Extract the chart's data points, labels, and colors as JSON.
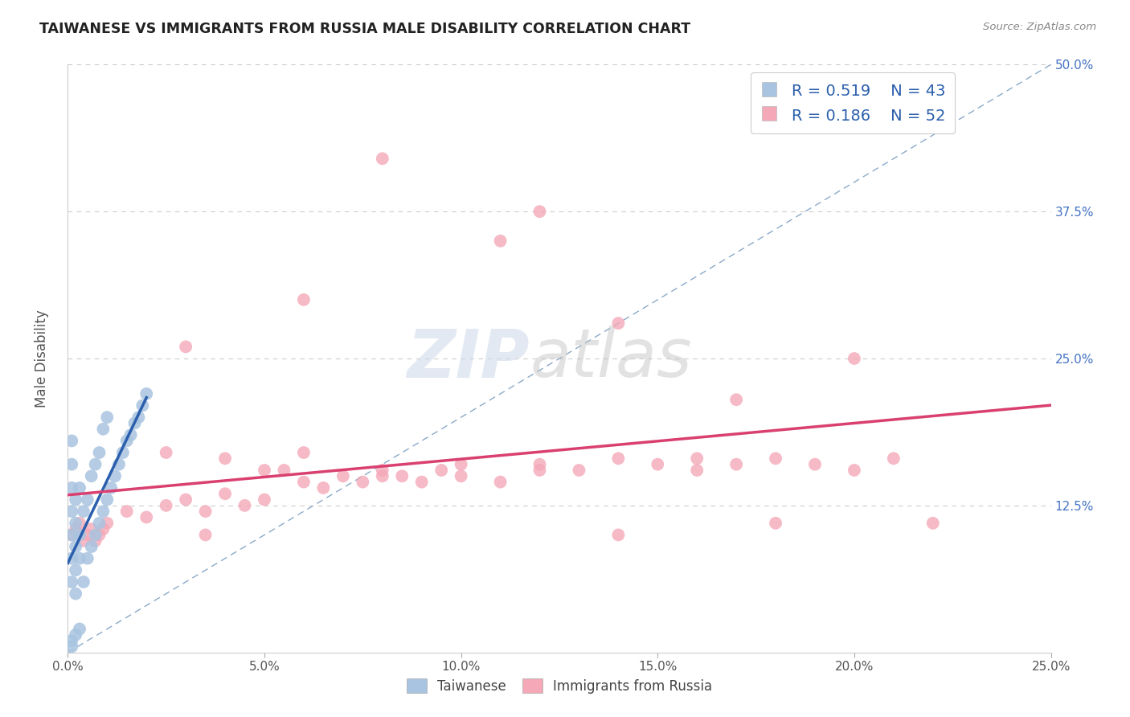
{
  "title": "TAIWANESE VS IMMIGRANTS FROM RUSSIA MALE DISABILITY CORRELATION CHART",
  "source": "Source: ZipAtlas.com",
  "ylabel": "Male Disability",
  "xlim": [
    0.0,
    0.25
  ],
  "ylim": [
    0.0,
    0.5
  ],
  "xticks": [
    0.0,
    0.05,
    0.1,
    0.15,
    0.2,
    0.25
  ],
  "yticks": [
    0.0,
    0.125,
    0.25,
    0.375,
    0.5
  ],
  "xticklabels": [
    "0.0%",
    "5.0%",
    "10.0%",
    "15.0%",
    "20.0%",
    "25.0%"
  ],
  "yticklabels_right": [
    "",
    "12.5%",
    "25.0%",
    "37.5%",
    "50.0%"
  ],
  "legend_labels": [
    "Taiwanese",
    "Immigrants from Russia"
  ],
  "r_taiwanese": 0.519,
  "n_taiwanese": 43,
  "r_russia": 0.186,
  "n_russia": 52,
  "color_taiwanese": "#a8c4e0",
  "color_russia": "#f4a8b8",
  "color_line_taiwanese": "#2b5fad",
  "color_line_russia": "#d94070",
  "color_diagonal": "#8aaac8",
  "tw_x": [
    0.001,
    0.001,
    0.001,
    0.001,
    0.001,
    0.001,
    0.001,
    0.002,
    0.002,
    0.002,
    0.002,
    0.002,
    0.003,
    0.003,
    0.003,
    0.004,
    0.004,
    0.005,
    0.005,
    0.006,
    0.006,
    0.007,
    0.007,
    0.008,
    0.008,
    0.009,
    0.009,
    0.01,
    0.01,
    0.011,
    0.012,
    0.013,
    0.014,
    0.015,
    0.016,
    0.017,
    0.018,
    0.019,
    0.02,
    0.001,
    0.001,
    0.002,
    0.003
  ],
  "tw_y": [
    0.06,
    0.08,
    0.1,
    0.12,
    0.14,
    0.16,
    0.18,
    0.05,
    0.07,
    0.09,
    0.11,
    0.13,
    0.08,
    0.1,
    0.14,
    0.06,
    0.12,
    0.08,
    0.13,
    0.09,
    0.15,
    0.1,
    0.16,
    0.11,
    0.17,
    0.12,
    0.19,
    0.13,
    0.2,
    0.14,
    0.15,
    0.16,
    0.17,
    0.18,
    0.185,
    0.195,
    0.2,
    0.21,
    0.22,
    0.005,
    0.01,
    0.015,
    0.02
  ],
  "ru_x": [
    0.001,
    0.002,
    0.003,
    0.004,
    0.005,
    0.006,
    0.007,
    0.008,
    0.009,
    0.01,
    0.015,
    0.02,
    0.025,
    0.03,
    0.035,
    0.04,
    0.045,
    0.05,
    0.055,
    0.06,
    0.065,
    0.07,
    0.075,
    0.08,
    0.085,
    0.09,
    0.095,
    0.1,
    0.11,
    0.12,
    0.13,
    0.14,
    0.15,
    0.16,
    0.17,
    0.18,
    0.19,
    0.2,
    0.21,
    0.22,
    0.025,
    0.03,
    0.035,
    0.04,
    0.05,
    0.06,
    0.08,
    0.1,
    0.12,
    0.14,
    0.16,
    0.18
  ],
  "ru_y": [
    0.1,
    0.105,
    0.11,
    0.095,
    0.1,
    0.105,
    0.095,
    0.1,
    0.105,
    0.11,
    0.12,
    0.115,
    0.125,
    0.13,
    0.12,
    0.135,
    0.125,
    0.13,
    0.155,
    0.145,
    0.14,
    0.15,
    0.145,
    0.155,
    0.15,
    0.145,
    0.155,
    0.15,
    0.145,
    0.16,
    0.155,
    0.165,
    0.16,
    0.155,
    0.16,
    0.165,
    0.16,
    0.155,
    0.165,
    0.11,
    0.17,
    0.26,
    0.1,
    0.165,
    0.155,
    0.17,
    0.15,
    0.16,
    0.155,
    0.1,
    0.165,
    0.11
  ],
  "ru_outliers_x": [
    0.08,
    0.11,
    0.12,
    0.06,
    0.14,
    0.17,
    0.2
  ],
  "ru_outliers_y": [
    0.42,
    0.35,
    0.375,
    0.3,
    0.28,
    0.215,
    0.25
  ],
  "tw_line_x": [
    0.0,
    0.019
  ],
  "tw_line_y": [
    0.088,
    0.215
  ]
}
